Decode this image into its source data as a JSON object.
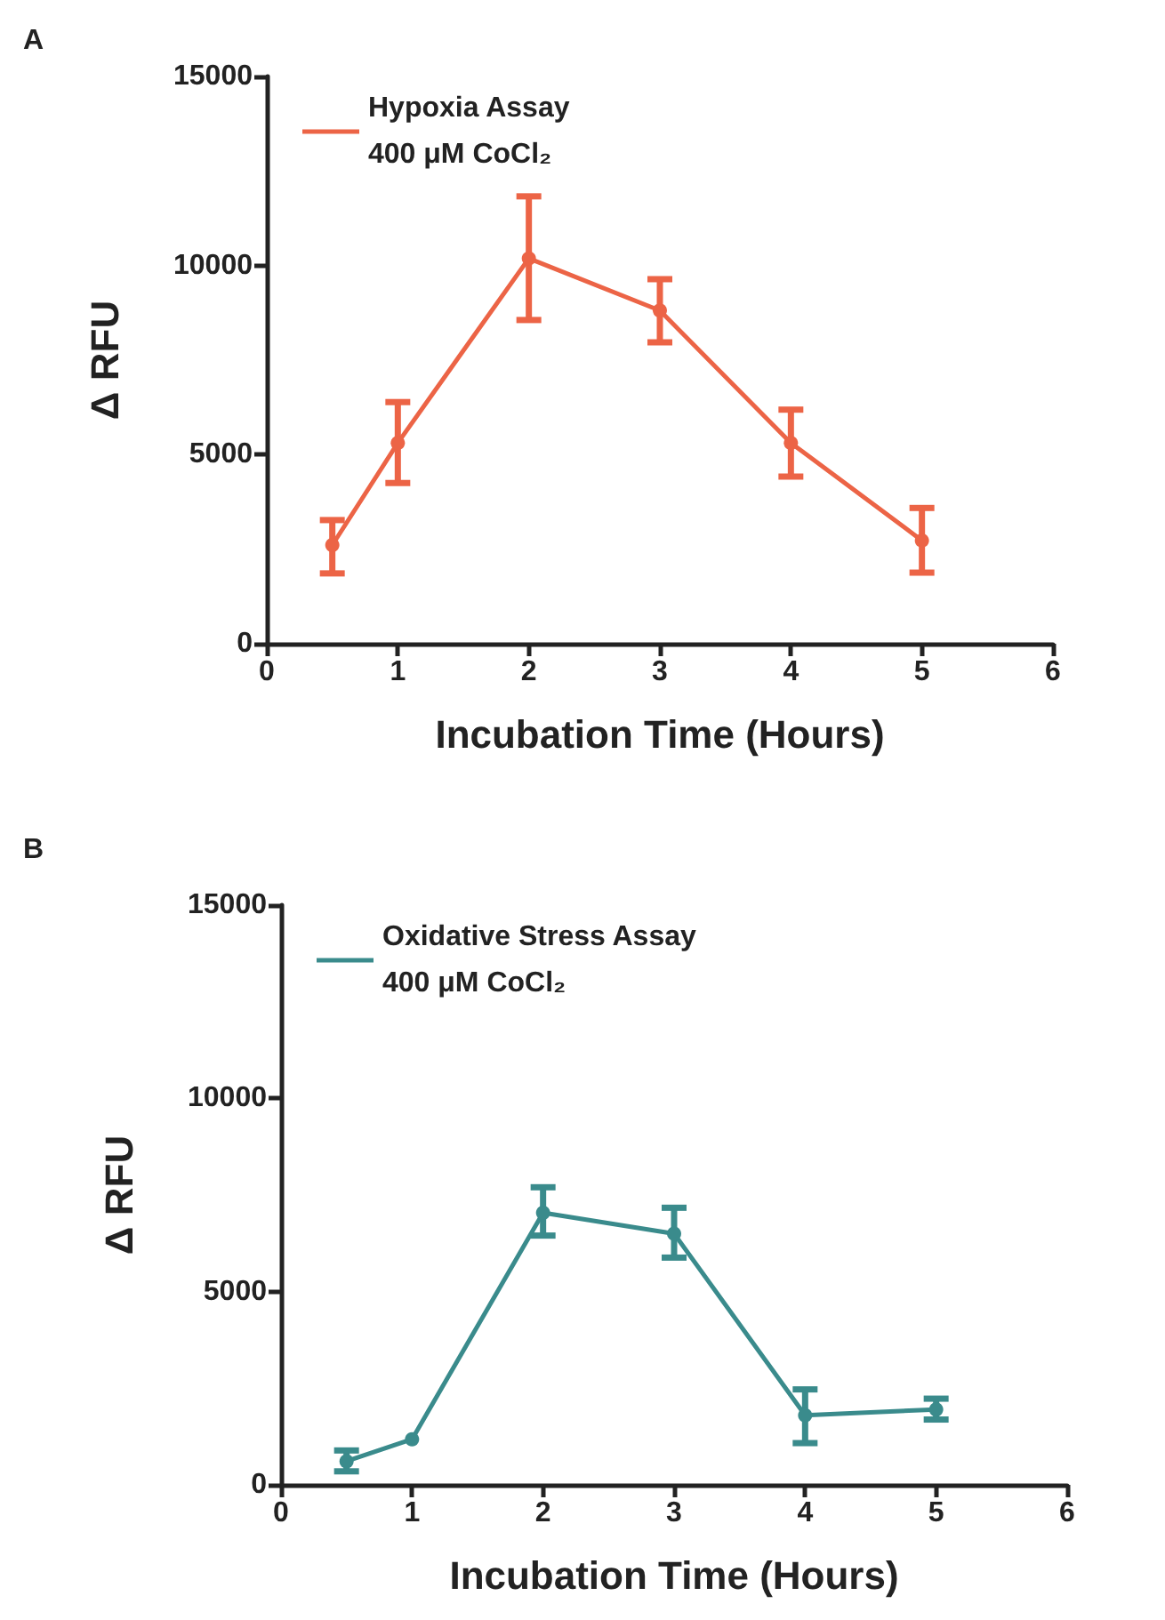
{
  "chart_data": [
    {
      "type": "line",
      "title": "A",
      "xlabel": "Incubation Time (Hours)",
      "ylabel": "Δ RFU",
      "x": [
        0.5,
        1,
        2,
        3,
        4,
        5
      ],
      "series": [
        {
          "name": "Hypoxia Assay\n400 μM CoCl₂",
          "color": "#ec6446",
          "values": [
            2610,
            5310,
            10190,
            8810,
            5310,
            2730
          ],
          "errors": [
            [
              1860,
              3270
            ],
            [
              4250,
              6390
            ],
            [
              8560,
              11830
            ],
            [
              7970,
              9640
            ],
            [
              4420,
              6190
            ],
            [
              1880,
              3590
            ]
          ]
        }
      ],
      "xlim": [
        0,
        6
      ],
      "xticks": [
        0,
        1,
        2,
        3,
        4,
        5,
        6
      ],
      "ylim": [
        0,
        15000
      ],
      "yticks": [
        0,
        5000,
        10000,
        15000
      ],
      "grid": false,
      "legend": "top left",
      "marker": "circle",
      "line_style": "solid"
    },
    {
      "type": "line",
      "title": "B",
      "xlabel": "Incubation Time (Hours)",
      "ylabel": "Δ RFU",
      "x": [
        0.5,
        1,
        2,
        3,
        4,
        5
      ],
      "series": [
        {
          "name": "Oxidative Stress Assay\n400 μM CoCl₂",
          "color": "#3a8b8c",
          "values": [
            610,
            1180,
            7040,
            6500,
            1800,
            1950
          ],
          "errors": [
            [
              350,
              890
            ],
            null,
            [
              6450,
              7700
            ],
            [
              5880,
              7170
            ],
            [
              1080,
              2470
            ],
            [
              1690,
              2230
            ]
          ]
        }
      ],
      "xlim": [
        0,
        6
      ],
      "xticks": [
        0,
        1,
        2,
        3,
        4,
        5,
        6
      ],
      "ylim": [
        0,
        15000
      ],
      "yticks": [
        0,
        5000,
        10000,
        15000
      ],
      "grid": false,
      "legend": "top left",
      "marker": "circle",
      "line_style": "solid"
    }
  ]
}
